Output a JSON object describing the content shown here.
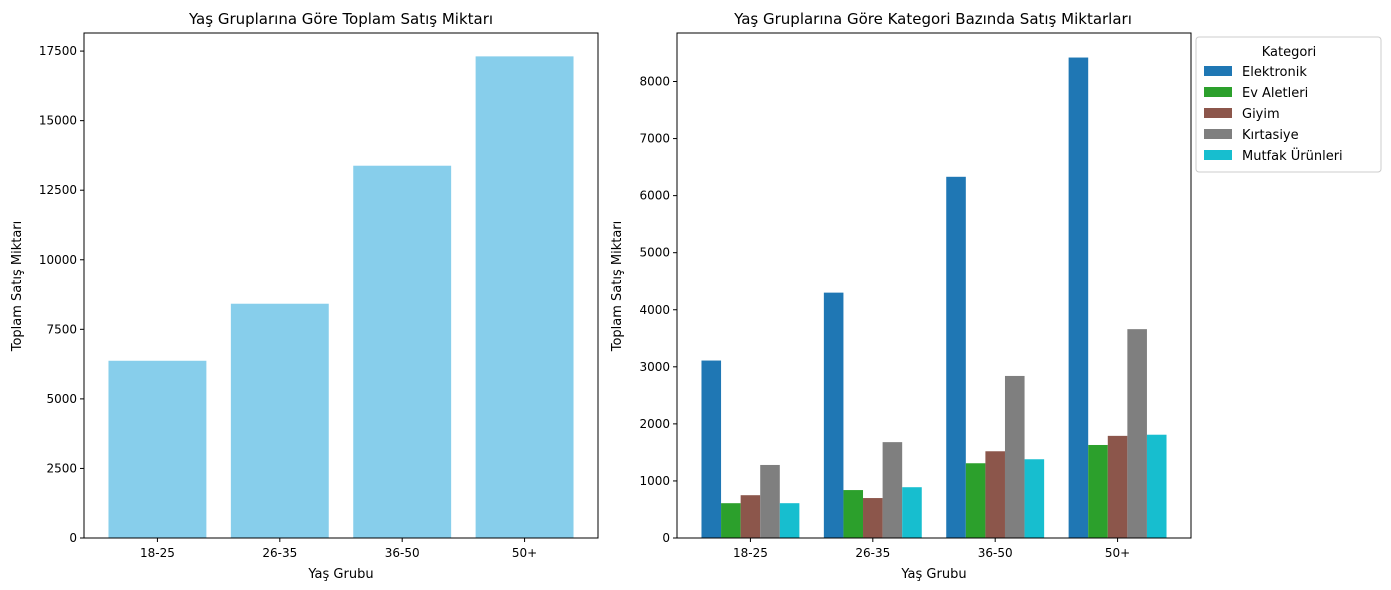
{
  "chart_data": [
    {
      "type": "bar",
      "title": "Yaş Gruplarına Göre Toplam Satış Miktarı",
      "xlabel": "Yaş Grubu",
      "ylabel": "Toplam Satış Miktarı",
      "categories": [
        "18-25",
        "26-35",
        "36-50",
        "50+"
      ],
      "values": [
        6370,
        8420,
        13380,
        17310
      ],
      "ylim": [
        0,
        18150
      ],
      "yticks": [
        0,
        2500,
        5000,
        7500,
        10000,
        12500,
        15000,
        17500
      ],
      "color": "#87ceeb",
      "grid": false
    },
    {
      "type": "bar",
      "title": "Yaş Gruplarına Göre Kategori Bazında Satış Miktarları",
      "xlabel": "Yaş Grubu",
      "ylabel": "Toplam Satış Miktarı",
      "categories": [
        "18-25",
        "26-35",
        "36-50",
        "50+"
      ],
      "ylim": [
        0,
        8850
      ],
      "yticks": [
        0,
        1000,
        2000,
        3000,
        4000,
        5000,
        6000,
        7000,
        8000
      ],
      "grid": false,
      "legend": {
        "title": "Kategori",
        "placement": "outside-top-right"
      },
      "series": [
        {
          "name": "Elektronik",
          "color": "#1f77b4",
          "values": [
            3110,
            4300,
            6330,
            8420
          ]
        },
        {
          "name": "Ev Aletleri",
          "color": "#2ca02c",
          "values": [
            610,
            840,
            1310,
            1630
          ]
        },
        {
          "name": "Giyim",
          "color": "#8c564b",
          "values": [
            750,
            700,
            1520,
            1790
          ]
        },
        {
          "name": "Kırtasiye",
          "color": "#7f7f7f",
          "values": [
            1280,
            1680,
            2840,
            3660
          ]
        },
        {
          "name": "Mutfak Ürünleri",
          "color": "#17becf",
          "values": [
            610,
            890,
            1380,
            1810
          ]
        }
      ]
    }
  ]
}
